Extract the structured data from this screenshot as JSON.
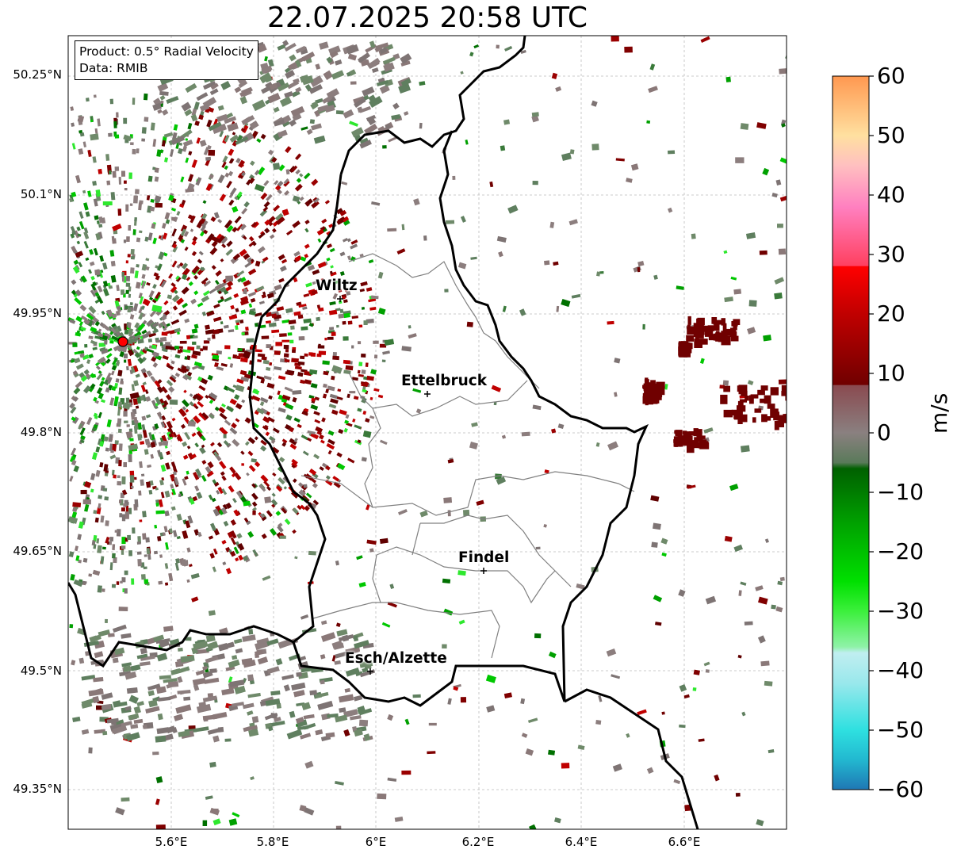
{
  "title": "22.07.2025 20:58 UTC",
  "info": {
    "product": "Product: 0.5° Radial Velocity",
    "data": "Data: RMIB"
  },
  "map": {
    "lat_labels": [
      "50.25°N",
      "50.1°N",
      "49.95°N",
      "49.8°N",
      "49.65°N",
      "49.5°N",
      "49.35°N"
    ],
    "lon_labels": [
      "5.6°E",
      "5.8°E",
      "6°E",
      "6.2°E",
      "6.4°E",
      "6.6°E"
    ],
    "cities": [
      {
        "name": "Wiltz"
      },
      {
        "name": "Ettelbruck"
      },
      {
        "name": "Findel"
      },
      {
        "name": "Esch/Alzette"
      }
    ],
    "radar_site_color": "#ff0000"
  },
  "colorbar": {
    "unit": "m/s",
    "min": -60,
    "max": 60,
    "tick_labels": [
      "60",
      "50",
      "40",
      "30",
      "20",
      "10",
      "0",
      "−10",
      "−20",
      "−30",
      "−40",
      "−50",
      "−60"
    ],
    "stops": [
      {
        "v": -60,
        "c": "#1f77b4"
      },
      {
        "v": -55,
        "c": "#22b8d0"
      },
      {
        "v": -50,
        "c": "#2ee0e0"
      },
      {
        "v": -42,
        "c": "#9ae8ec"
      },
      {
        "v": -37,
        "c": "#c0eef0"
      },
      {
        "v": -36,
        "c": "#8ff2a8"
      },
      {
        "v": -30,
        "c": "#3cf03c"
      },
      {
        "v": -25,
        "c": "#00e000"
      },
      {
        "v": -15,
        "c": "#00a000"
      },
      {
        "v": -6,
        "c": "#006000"
      },
      {
        "v": -5,
        "c": "#5a7a5a"
      },
      {
        "v": 0,
        "c": "#8a8080"
      },
      {
        "v": 8,
        "c": "#8a4a50"
      },
      {
        "v": 8.1,
        "c": "#700000"
      },
      {
        "v": 20,
        "c": "#c00000"
      },
      {
        "v": 28,
        "c": "#ff0000"
      },
      {
        "v": 28.1,
        "c": "#ff4060"
      },
      {
        "v": 38,
        "c": "#ff80c0"
      },
      {
        "v": 45,
        "c": "#ffc0c0"
      },
      {
        "v": 50,
        "c": "#ffe0a0"
      },
      {
        "v": 60,
        "c": "#ff9850"
      }
    ]
  }
}
